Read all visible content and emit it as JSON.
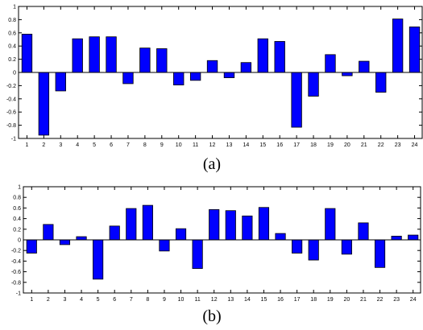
{
  "chart_data": [
    {
      "type": "bar",
      "panel_label": "(a)",
      "categories": [
        "1",
        "2",
        "3",
        "4",
        "5",
        "6",
        "7",
        "8",
        "9",
        "10",
        "11",
        "12",
        "13",
        "14",
        "15",
        "16",
        "17",
        "18",
        "19",
        "20",
        "21",
        "22",
        "23",
        "24"
      ],
      "values": [
        0.58,
        -0.95,
        -0.28,
        0.51,
        0.54,
        0.54,
        -0.17,
        0.37,
        0.36,
        -0.19,
        -0.12,
        0.18,
        -0.08,
        0.15,
        0.51,
        0.47,
        -0.83,
        -0.36,
        0.27,
        -0.05,
        0.17,
        -0.3,
        0.81,
        0.69
      ],
      "ylim": [
        -1,
        1
      ],
      "yticks": [
        "-1",
        "-0.8",
        "-0.6",
        "-0.4",
        "-0.2",
        "0",
        "0.2",
        "0.4",
        "0.6",
        "0.8",
        "1"
      ],
      "bar_color": "#0000ff",
      "grid": false
    },
    {
      "type": "bar",
      "panel_label": "(b)",
      "categories": [
        "1",
        "2",
        "3",
        "4",
        "5",
        "6",
        "7",
        "8",
        "9",
        "10",
        "11",
        "12",
        "13",
        "14",
        "15",
        "16",
        "17",
        "18",
        "19",
        "20",
        "21",
        "22",
        "23",
        "24"
      ],
      "values": [
        -0.25,
        0.29,
        -0.09,
        0.06,
        -0.74,
        0.26,
        0.59,
        0.65,
        -0.21,
        0.21,
        -0.54,
        0.57,
        0.55,
        0.45,
        0.61,
        0.12,
        -0.25,
        -0.38,
        0.59,
        -0.27,
        0.32,
        -0.52,
        0.07,
        0.09
      ],
      "ylim": [
        -1,
        1
      ],
      "yticks": [
        "-1",
        "-0.8",
        "-0.6",
        "-0.4",
        "-0.2",
        "0",
        "0.2",
        "0.4",
        "0.6",
        "0.8",
        "1"
      ],
      "bar_color": "#0000ff",
      "grid": false
    }
  ]
}
